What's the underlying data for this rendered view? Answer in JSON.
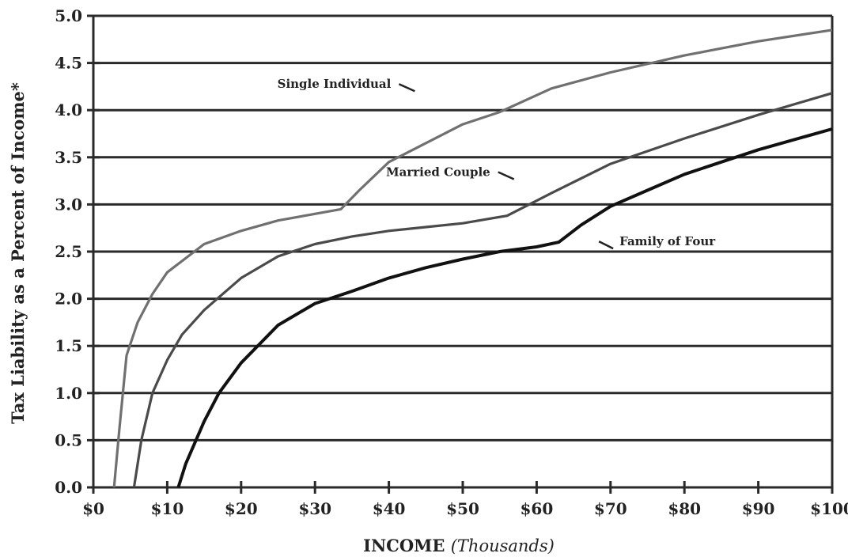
{
  "chart_data": {
    "type": "line",
    "xlabel": "INCOME",
    "xlabel_unit": "(Thousands)",
    "ylabel": "Tax Liability as a Percent of Income*",
    "xlim": [
      0,
      100
    ],
    "ylim": [
      0,
      5
    ],
    "x_ticks": [
      0,
      10,
      20,
      30,
      40,
      50,
      60,
      70,
      80,
      90,
      100
    ],
    "x_tick_labels": [
      "$0",
      "$10",
      "$20",
      "$30",
      "$40",
      "$50",
      "$60",
      "$70",
      "$80",
      "$90",
      "$100"
    ],
    "y_ticks": [
      0,
      0.5,
      1,
      1.5,
      2,
      2.5,
      3,
      3.5,
      4,
      4.5,
      5
    ],
    "y_tick_labels": [
      "0.0",
      "0.5",
      "1.0",
      "1.5",
      "2.0",
      "2.5",
      "3.0",
      "3.5",
      "4.0",
      "4.5",
      "5.0"
    ],
    "grid": "horizontal",
    "series": [
      {
        "name": "Single Individual",
        "color": "#707070",
        "points": [
          [
            2.8,
            0
          ],
          [
            3.5,
            0.6
          ],
          [
            4.5,
            1.4
          ],
          [
            6,
            1.75
          ],
          [
            8,
            2.05
          ],
          [
            10,
            2.28
          ],
          [
            15,
            2.58
          ],
          [
            20,
            2.72
          ],
          [
            25,
            2.83
          ],
          [
            30,
            2.9
          ],
          [
            33.5,
            2.95
          ],
          [
            36,
            3.15
          ],
          [
            40,
            3.45
          ],
          [
            45,
            3.65
          ],
          [
            50,
            3.85
          ],
          [
            55,
            3.98
          ],
          [
            62,
            4.23
          ],
          [
            70,
            4.4
          ],
          [
            80,
            4.58
          ],
          [
            90,
            4.73
          ],
          [
            100,
            4.85
          ]
        ]
      },
      {
        "name": "Married Couple",
        "color": "#4a4a4a",
        "points": [
          [
            5.5,
            0
          ],
          [
            6.5,
            0.5
          ],
          [
            8,
            1.0
          ],
          [
            10,
            1.35
          ],
          [
            12,
            1.62
          ],
          [
            15,
            1.88
          ],
          [
            20,
            2.22
          ],
          [
            25,
            2.45
          ],
          [
            30,
            2.58
          ],
          [
            35,
            2.66
          ],
          [
            40,
            2.72
          ],
          [
            45,
            2.76
          ],
          [
            50,
            2.8
          ],
          [
            56,
            2.88
          ],
          [
            62,
            3.12
          ],
          [
            70,
            3.43
          ],
          [
            80,
            3.7
          ],
          [
            90,
            3.95
          ],
          [
            100,
            4.18
          ]
        ]
      },
      {
        "name": "Family of Four",
        "color": "#111111",
        "points": [
          [
            11.5,
            0
          ],
          [
            12.5,
            0.25
          ],
          [
            15,
            0.7
          ],
          [
            17,
            1.0
          ],
          [
            20,
            1.32
          ],
          [
            25,
            1.72
          ],
          [
            30,
            1.95
          ],
          [
            35,
            2.08
          ],
          [
            40,
            2.22
          ],
          [
            45,
            2.33
          ],
          [
            50,
            2.42
          ],
          [
            55,
            2.5
          ],
          [
            60,
            2.55
          ],
          [
            63,
            2.6
          ],
          [
            66,
            2.78
          ],
          [
            70,
            2.98
          ],
          [
            75,
            3.15
          ],
          [
            80,
            3.32
          ],
          [
            90,
            3.58
          ],
          [
            100,
            3.8
          ]
        ]
      }
    ],
    "annotations": [
      {
        "text": "Single Individual",
        "series": "Single Individual",
        "at": [
          54,
          4.05
        ]
      },
      {
        "text": "Married Couple",
        "series": "Married Couple",
        "at": [
          58,
          3.1
        ]
      },
      {
        "text": "Family of Four",
        "series": "Family of Four",
        "at": [
          68,
          2.65
        ]
      }
    ]
  }
}
